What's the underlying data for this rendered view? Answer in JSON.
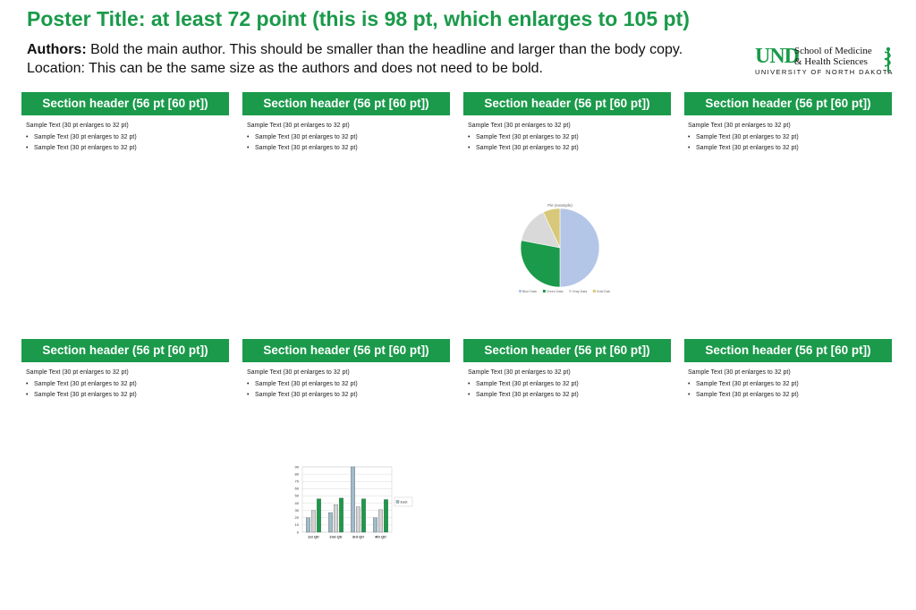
{
  "poster": {
    "title": "Poster Title: at least 72 point (this is 98 pt, which enlarges to 105 pt)",
    "authors_label": "Authors:",
    "authors_text": " Bold the main author. This should be smaller than the headline and larger than the body copy.",
    "location": "Location: This can be the same size as the authors and does not need to be bold."
  },
  "logo": {
    "und": "UND",
    "school_line1": "School of Medicine",
    "school_line2": "& Health Sciences",
    "university": "UNIVERSITY OF NORTH DAKOTA"
  },
  "sections": [
    {
      "header": "Section header (56 pt [60 pt])",
      "text": "Sample Text (30 pt enlarges to 32 pt)",
      "bullets": [
        "Sample Text (30 pt enlarges to 32 pt)",
        "Sample Text (30 pt enlarges to 32 pt)"
      ]
    },
    {
      "header": "Section header (56 pt [60 pt])",
      "text": "Sample Text (30 pt enlarges to 32 pt)",
      "bullets": [
        "Sample Text (30 pt enlarges to 32 pt)",
        "Sample Text (30 pt enlarges to 32 pt)"
      ]
    },
    {
      "header": "Section header (56 pt [60 pt])",
      "text": "Sample Text (30 pt enlarges to 32 pt)",
      "bullets": [
        "Sample Text (30 pt enlarges to 32 pt)",
        "Sample Text (30 pt enlarges to 32 pt)"
      ]
    },
    {
      "header": "Section header (56 pt [60 pt])",
      "text": "Sample Text (30 pt enlarges to 32 pt)",
      "bullets": [
        "Sample Text (30 pt enlarges to 32 pt)",
        "Sample Text (30 pt enlarges to 32 pt)"
      ]
    },
    {
      "header": "Section header (56 pt [60 pt])",
      "text": "Sample Text (30 pt enlarges to 32 pt)",
      "bullets": [
        "Sample Text (30 pt enlarges to 32 pt)",
        "Sample Text (30 pt enlarges to 32 pt)"
      ]
    },
    {
      "header": "Section header (56 pt [60 pt])",
      "text": "Sample Text (30 pt enlarges to 32 pt)",
      "bullets": [
        "Sample Text (30 pt enlarges to 32 pt)",
        "Sample Text (30 pt enlarges to 32 pt)"
      ]
    },
    {
      "header": "Section header (56 pt [60 pt])",
      "text": "Sample Text (30 pt enlarges to 32 pt)",
      "bullets": [
        "Sample Text (30 pt enlarges to 32 pt)",
        "Sample Text (30 pt enlarges to 32 pt)"
      ]
    },
    {
      "header": "Section header (56 pt [60 pt])",
      "text": "Sample Text (30 pt enlarges to 32 pt)",
      "bullets": [
        "Sample Text (30 pt enlarges to 32 pt)",
        "Sample Text (30 pt enlarges to 32 pt)"
      ]
    }
  ],
  "chart_data": [
    {
      "type": "pie",
      "title": "Pie (example)",
      "slices": [
        {
          "label": "Blue Data",
          "value": 50,
          "color": "#b4c6e7"
        },
        {
          "label": "Green Data",
          "value": 28,
          "color": "#1a9a4a"
        },
        {
          "label": "Gray Data",
          "value": 15,
          "color": "#d9d9d9"
        },
        {
          "label": "Gold Data",
          "value": 7,
          "color": "#d8c87a"
        }
      ],
      "legend": "bottom"
    },
    {
      "type": "bar",
      "categories": [
        "1st Qtr",
        "2nd Qtr",
        "3rd Qtr",
        "4th Qtr"
      ],
      "series": [
        {
          "values": [
            20,
            27,
            90,
            20
          ],
          "color": "#9fbccb"
        },
        {
          "values": [
            30,
            38,
            35,
            31
          ],
          "color": "#d4d4d4"
        },
        {
          "values": [
            46,
            47,
            46,
            45
          ],
          "color": "#1a9a4a"
        }
      ],
      "legend_label": "East",
      "ylim": [
        0,
        90
      ],
      "yticks": [
        0,
        10,
        20,
        30,
        40,
        50,
        60,
        70,
        80,
        90
      ],
      "grid": true,
      "legend": "right"
    }
  ]
}
